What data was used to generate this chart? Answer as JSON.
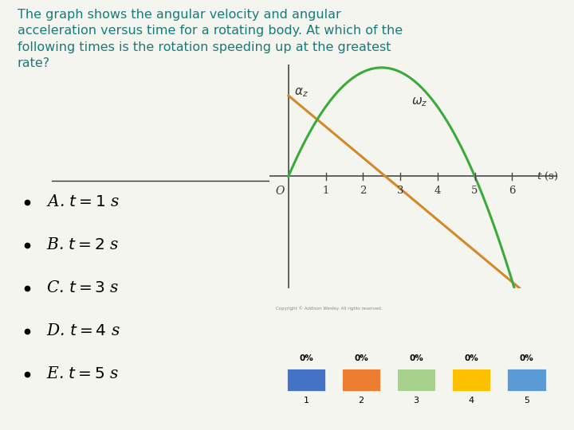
{
  "bg_color": "#f5f5f0",
  "title_text": "The graph shows the angular velocity and angular\nacceleration versus time for a rotating body. At which of the\nfollowing times is the rotation speeding up at the greatest\nrate?",
  "title_color": "#1a7a7a",
  "title_fontsize": 11.5,
  "bullet_items": [
    "A. $t = 1$ s",
    "B. $t = 2$ s",
    "C. $t = 3$ s",
    "D. $t = 4$ s",
    "E. $t = 5$ s"
  ],
  "bullet_color": "#000000",
  "bullet_fontsize": 14.5,
  "omega_color": "#3aaa3a",
  "alpha_color": "#d4882a",
  "axis_color": "#555555",
  "tick_color": "#444444",
  "label_color": "#333333",
  "graph_bg": "#f5f5f0",
  "divider_color": "#333333",
  "bar_colors": [
    "#4472c4",
    "#ed7d31",
    "#a9d18e",
    "#ffc000",
    "#5b9bd5"
  ],
  "bar_labels": [
    "1",
    "2",
    "3",
    "4",
    "5"
  ]
}
